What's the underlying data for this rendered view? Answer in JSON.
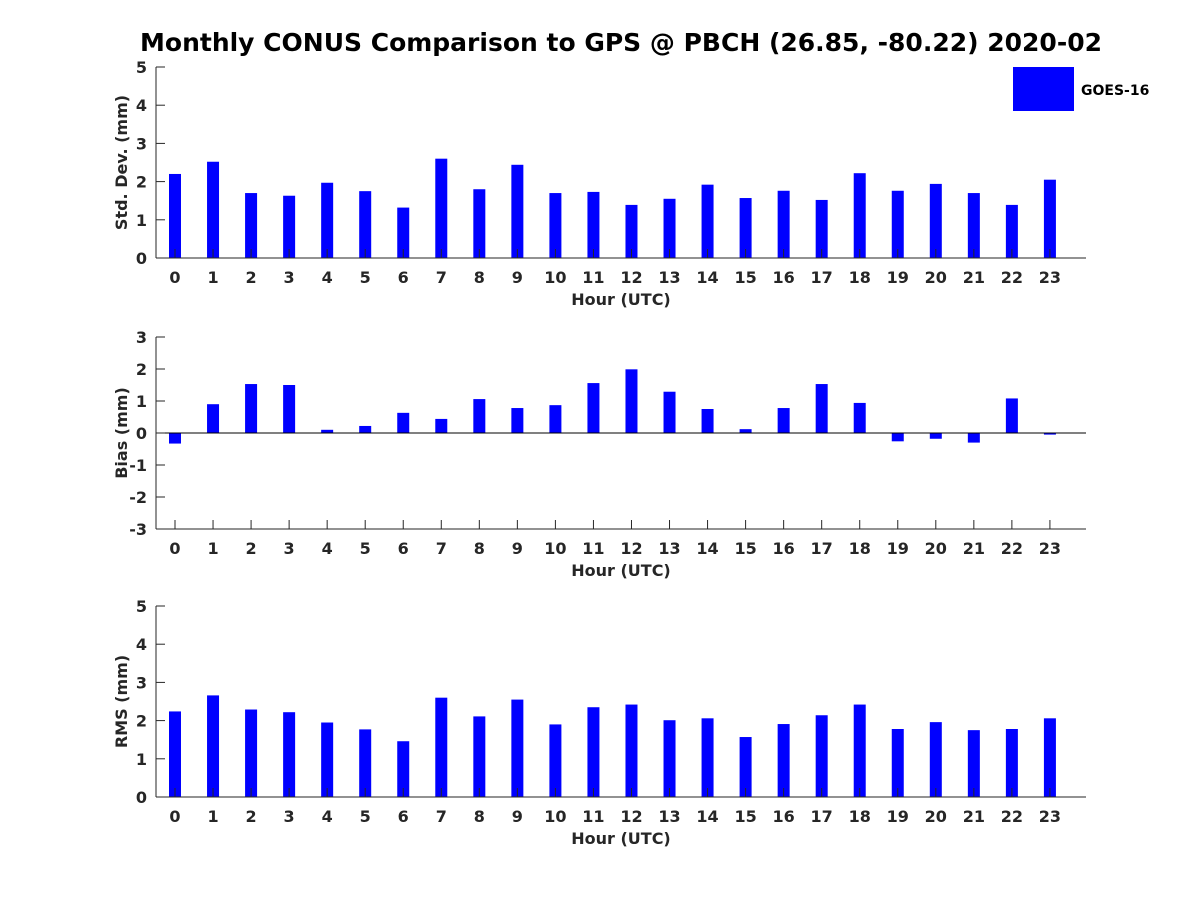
{
  "title": "Monthly CONUS Comparison to GPS @ PBCH (26.85, -80.22) 2020-02",
  "legend": {
    "label": "GOES-16",
    "color": "#0000ff",
    "position": "top-right"
  },
  "chart_data": [
    {
      "type": "bar",
      "name": "std",
      "title": "",
      "xlabel": "Hour (UTC)",
      "ylabel": "Std. Dev. (mm)",
      "ylim": [
        0,
        5
      ],
      "yticks": [
        0,
        1,
        2,
        3,
        4,
        5
      ],
      "grid": false,
      "categories": [
        "0",
        "1",
        "2",
        "3",
        "4",
        "5",
        "6",
        "7",
        "8",
        "9",
        "10",
        "11",
        "12",
        "13",
        "14",
        "15",
        "16",
        "17",
        "18",
        "19",
        "20",
        "21",
        "22",
        "23"
      ],
      "series": [
        {
          "name": "GOES-16",
          "color": "#0000ff",
          "values": [
            2.2,
            2.52,
            1.7,
            1.63,
            1.97,
            1.75,
            1.32,
            2.6,
            1.8,
            2.44,
            1.7,
            1.73,
            1.39,
            1.55,
            1.92,
            1.57,
            1.76,
            1.52,
            2.22,
            1.76,
            1.94,
            1.7,
            1.39,
            2.05
          ]
        }
      ]
    },
    {
      "type": "bar",
      "name": "bias",
      "title": "",
      "xlabel": "Hour (UTC)",
      "ylabel": "Bias (mm)",
      "ylim": [
        -3,
        3
      ],
      "yticks": [
        -3,
        -2,
        -1,
        0,
        1,
        2,
        3
      ],
      "grid": false,
      "categories": [
        "0",
        "1",
        "2",
        "3",
        "4",
        "5",
        "6",
        "7",
        "8",
        "9",
        "10",
        "11",
        "12",
        "13",
        "14",
        "15",
        "16",
        "17",
        "18",
        "19",
        "20",
        "21",
        "22",
        "23"
      ],
      "series": [
        {
          "name": "GOES-16",
          "color": "#0000ff",
          "values": [
            -0.33,
            0.9,
            1.53,
            1.5,
            0.1,
            0.22,
            0.63,
            0.44,
            1.06,
            0.78,
            0.87,
            1.56,
            1.99,
            1.29,
            0.75,
            0.12,
            0.78,
            1.53,
            0.94,
            -0.26,
            -0.18,
            -0.3,
            1.08,
            -0.05
          ]
        }
      ]
    },
    {
      "type": "bar",
      "name": "rms",
      "title": "",
      "xlabel": "Hour (UTC)",
      "ylabel": "RMS (mm)",
      "ylim": [
        0,
        5
      ],
      "yticks": [
        0,
        1,
        2,
        3,
        4,
        5
      ],
      "grid": false,
      "categories": [
        "0",
        "1",
        "2",
        "3",
        "4",
        "5",
        "6",
        "7",
        "8",
        "9",
        "10",
        "11",
        "12",
        "13",
        "14",
        "15",
        "16",
        "17",
        "18",
        "19",
        "20",
        "21",
        "22",
        "23"
      ],
      "series": [
        {
          "name": "GOES-16",
          "color": "#0000ff",
          "values": [
            2.24,
            2.66,
            2.29,
            2.22,
            1.95,
            1.77,
            1.46,
            2.6,
            2.11,
            2.55,
            1.9,
            2.35,
            2.42,
            2.01,
            2.06,
            1.57,
            1.91,
            2.14,
            2.42,
            1.78,
            1.96,
            1.75,
            1.78,
            2.06
          ]
        }
      ]
    }
  ]
}
